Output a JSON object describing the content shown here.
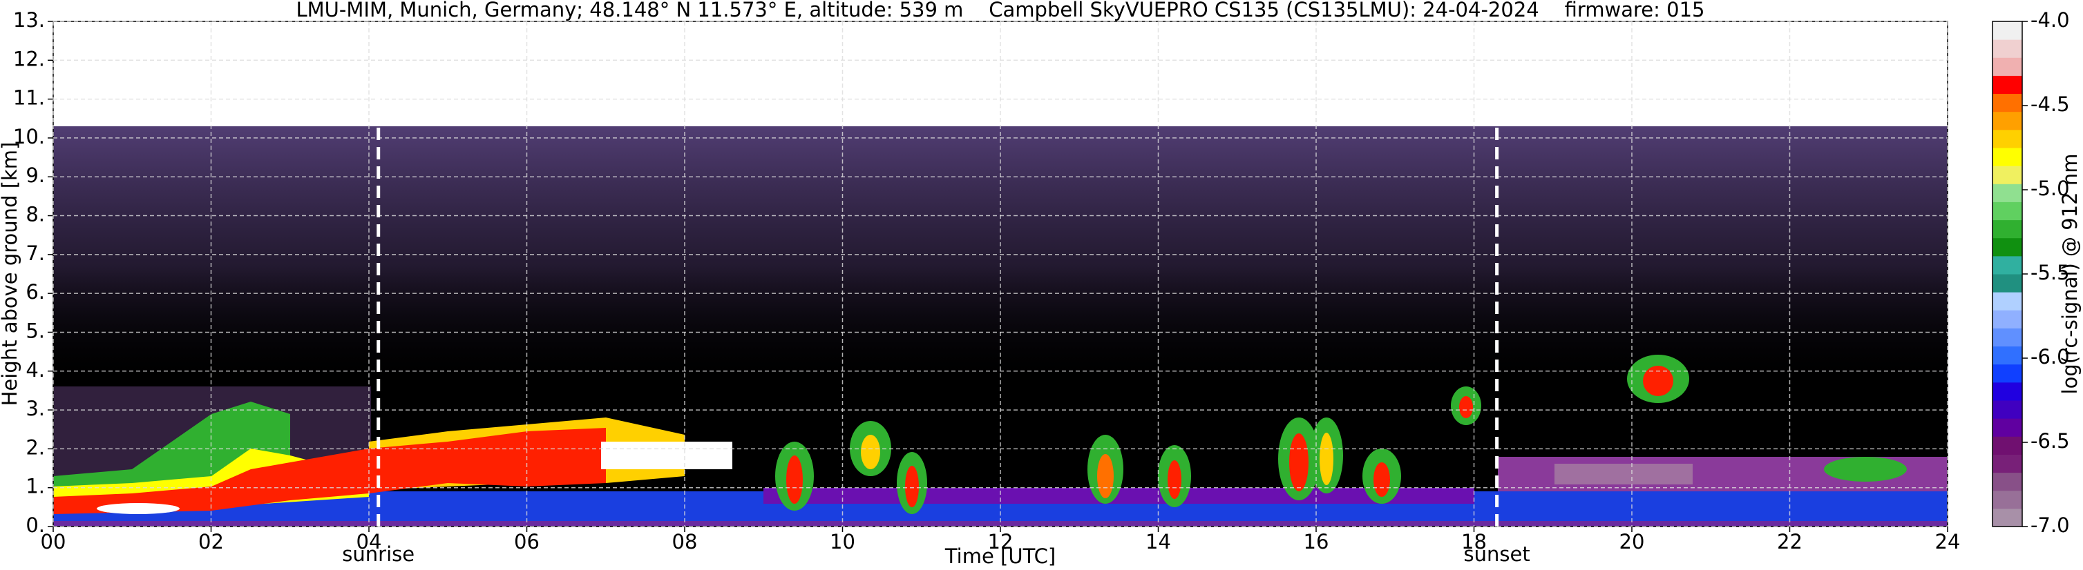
{
  "chart_data": {
    "type": "heatmap",
    "title": "LMU-MIM, Munich, Germany; 48.148° N 11.573° E, altitude: 539 m    Campbell SkyVUEPRO CS135 (CS135LMU): 24-04-2024    firmware: 015",
    "xlabel": "Time [UTC]",
    "ylabel": "Height above ground [km]",
    "xlim": [
      0,
      24
    ],
    "xticks": [
      {
        "value": 0,
        "label": "00"
      },
      {
        "value": 2,
        "label": "02"
      },
      {
        "value": 4,
        "label": "04"
      },
      {
        "value": 6,
        "label": "06"
      },
      {
        "value": 8,
        "label": "08"
      },
      10,
      12,
      14,
      16,
      18,
      20,
      22,
      24
    ],
    "ylim": [
      0,
      13
    ],
    "yticks": [
      {
        "value": 0,
        "label": "0."
      },
      {
        "value": 1,
        "label": "1."
      },
      {
        "value": 2,
        "label": "2."
      },
      {
        "value": 3,
        "label": "3."
      },
      {
        "value": 4,
        "label": "4."
      },
      {
        "value": 5,
        "label": "5."
      },
      {
        "value": 6,
        "label": "6."
      },
      {
        "value": 7,
        "label": "7."
      },
      {
        "value": 8,
        "label": "8."
      },
      {
        "value": 9,
        "label": "9."
      },
      {
        "value": 10,
        "label": "10."
      },
      {
        "value": 11,
        "label": "11."
      },
      {
        "value": 12,
        "label": "12."
      },
      {
        "value": 13,
        "label": "13."
      }
    ],
    "grid": true,
    "annotations": [
      {
        "label": "sunrise",
        "x": 4.12
      },
      {
        "label": "sunset",
        "x": 18.29
      }
    ],
    "colorbar": {
      "label": "log(rc-signal) @ 912 nm",
      "lim": [
        -7,
        -4
      ],
      "ticks": [
        {
          "value": -7,
          "label": "-7.0"
        },
        -6.5,
        {
          "value": -6,
          "label": "-6.0"
        },
        -5.5,
        {
          "value": -5,
          "label": "-5.0"
        },
        -4.5,
        {
          "value": -4,
          "label": "-4.0"
        }
      ],
      "colors": [
        "#a890a8",
        "#987098",
        "#885088",
        "#782078",
        "#701070",
        "#6000a0",
        "#4000c0",
        "#2000e0",
        "#1040ff",
        "#3070ff",
        "#6090ff",
        "#90b0ff",
        "#b0d0ff",
        "#209080",
        "#30b0a0",
        "#109010",
        "#30b030",
        "#60d060",
        "#90e090",
        "#f0f060",
        "#ffff00",
        "#ffd000",
        "#ffa000",
        "#ff7000",
        "#ff0000",
        "#f0b0b0",
        "#f0d0d0",
        "#f0f0f0"
      ]
    }
  }
}
